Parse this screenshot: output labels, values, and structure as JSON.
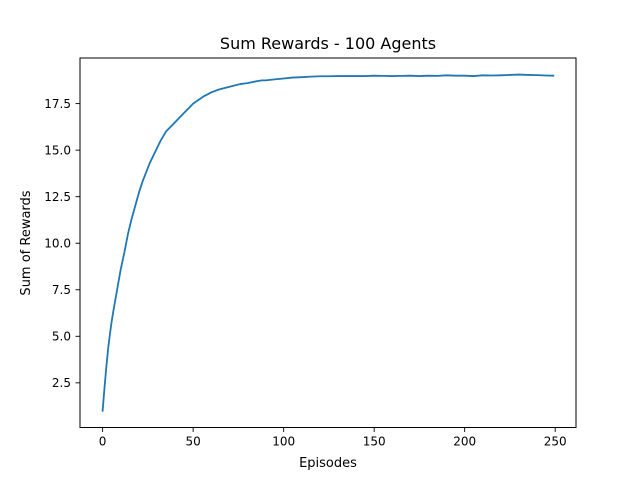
{
  "chart_data": {
    "type": "line",
    "title": "Sum Rewards - 100 Agents",
    "xlabel": "Episodes",
    "ylabel": "Sum of Rewards",
    "xlim": [
      -12.5,
      261.5
    ],
    "ylim": [
      0.1,
      19.95
    ],
    "xticks": [
      0,
      50,
      100,
      150,
      200,
      250
    ],
    "xtick_labels": [
      "0",
      "50",
      "100",
      "150",
      "200",
      "250"
    ],
    "yticks": [
      2.5,
      5.0,
      7.5,
      10.0,
      12.5,
      15.0,
      17.5
    ],
    "ytick_labels": [
      "2.5",
      "5.0",
      "7.5",
      "10.0",
      "12.5",
      "15.0",
      "17.5"
    ],
    "grid": false,
    "legend": "none",
    "series": [
      {
        "color": "#1f77b4",
        "x": [
          0,
          1,
          2,
          3,
          4,
          5,
          6,
          8,
          10,
          12,
          14,
          16,
          18,
          20,
          22,
          24,
          26,
          28,
          30,
          32,
          35,
          38,
          40,
          43,
          46,
          48,
          50,
          53,
          56,
          60,
          64,
          68,
          72,
          76,
          80,
          85,
          88,
          90,
          95,
          100,
          105,
          110,
          115,
          120,
          125,
          130,
          135,
          140,
          145,
          150,
          155,
          160,
          165,
          170,
          175,
          180,
          185,
          190,
          195,
          200,
          205,
          210,
          215,
          220,
          225,
          230,
          235,
          240,
          245,
          249
        ],
        "y": [
          1.0,
          2.2,
          3.3,
          4.3,
          5.1,
          5.8,
          6.4,
          7.5,
          8.6,
          9.5,
          10.5,
          11.3,
          12.0,
          12.7,
          13.3,
          13.8,
          14.3,
          14.7,
          15.1,
          15.5,
          16.0,
          16.3,
          16.5,
          16.8,
          17.1,
          17.3,
          17.5,
          17.7,
          17.9,
          18.1,
          18.25,
          18.35,
          18.45,
          18.55,
          18.6,
          18.7,
          18.75,
          18.75,
          18.8,
          18.85,
          18.9,
          18.92,
          18.95,
          18.97,
          18.97,
          18.98,
          18.98,
          18.98,
          18.98,
          19.0,
          18.99,
          18.98,
          18.99,
          19.0,
          18.98,
          19.0,
          18.99,
          19.02,
          19.0,
          19.0,
          18.98,
          19.02,
          19.01,
          19.02,
          19.04,
          19.06,
          19.04,
          19.03,
          19.01,
          19.0
        ]
      }
    ]
  }
}
